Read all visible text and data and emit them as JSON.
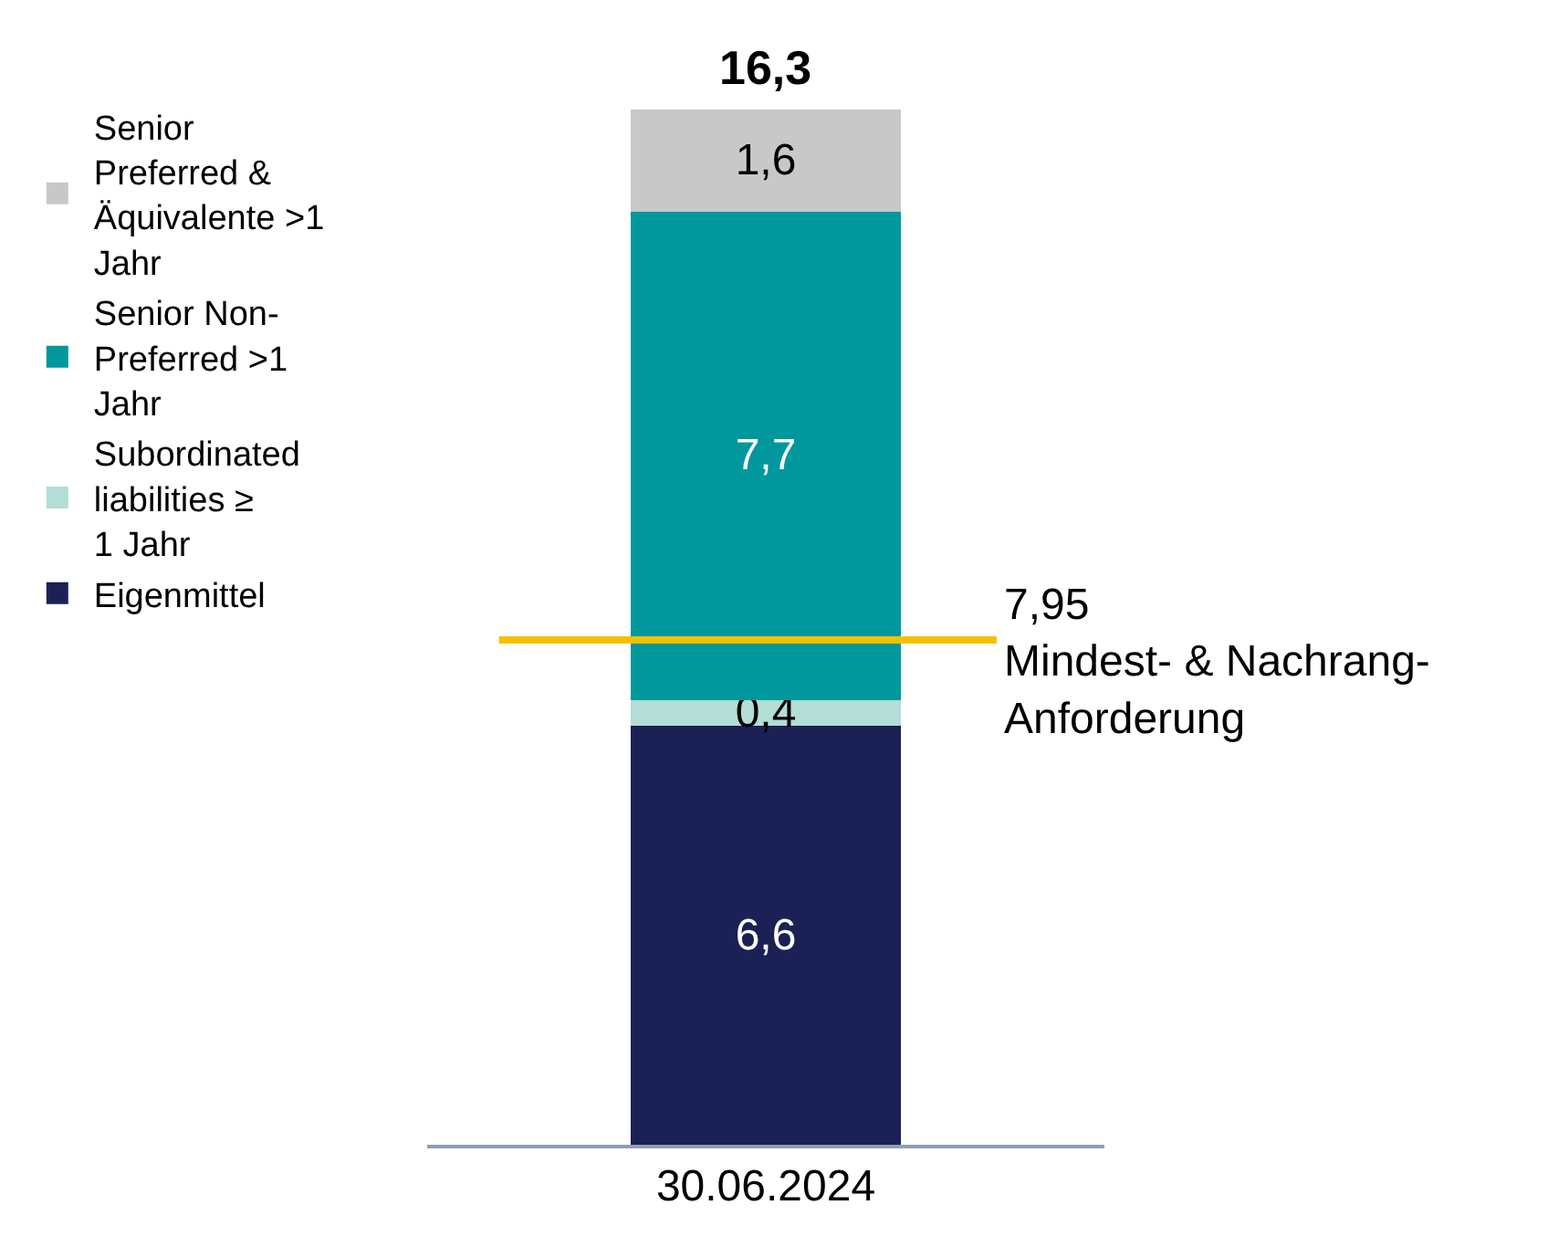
{
  "chart_data": {
    "type": "bar",
    "stacked": true,
    "categories": [
      "30.06.2024"
    ],
    "series": [
      {
        "name": "Eigenmittel",
        "color": "#1b2155",
        "values": [
          6.6
        ],
        "value_labels": [
          "6,6"
        ]
      },
      {
        "name": "Subordinated liabilities ≥  1 Jahr",
        "color": "#b3ddd6",
        "values": [
          0.4
        ],
        "value_labels": [
          "0,4"
        ]
      },
      {
        "name": "Senior Non-Preferred >1 Jahr",
        "color": "#00989c",
        "values": [
          7.7
        ],
        "value_labels": [
          "7,7"
        ]
      },
      {
        "name": "Senior Preferred & Äquivalente >1 Jahr",
        "color": "#c8c8c8",
        "values": [
          1.6
        ],
        "value_labels": [
          "1,6"
        ]
      }
    ],
    "totals": [
      "16,3"
    ],
    "ref_lines": [
      {
        "axis": "y",
        "value": 7.95,
        "label": "7,95\nMindest- & Nachrang-\nAnforderung",
        "color": "#f5c000"
      }
    ],
    "legend": "left"
  }
}
